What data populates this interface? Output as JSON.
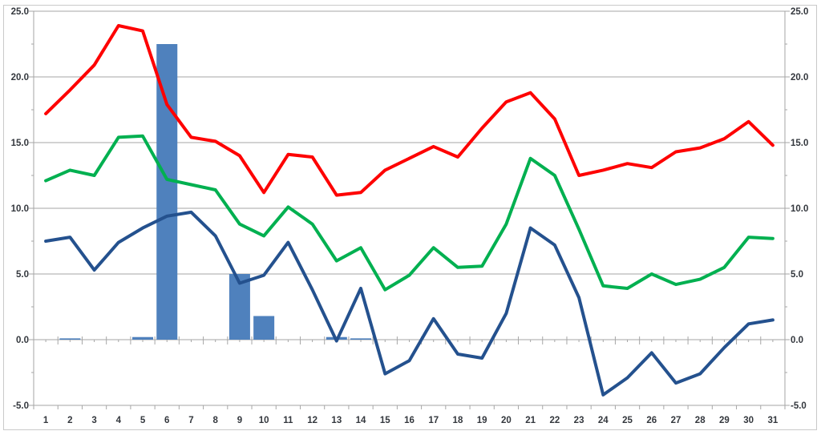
{
  "chart_data": {
    "type": "combo",
    "title": "",
    "legend": "none",
    "grid": true,
    "categories": [
      1,
      2,
      3,
      4,
      5,
      6,
      7,
      8,
      9,
      10,
      11,
      12,
      13,
      14,
      15,
      16,
      17,
      18,
      19,
      20,
      21,
      22,
      23,
      24,
      25,
      26,
      27,
      28,
      29,
      30,
      31
    ],
    "x_axis": {
      "labels": [
        "1",
        "2",
        "3",
        "4",
        "5",
        "6",
        "7",
        "8",
        "9",
        "10",
        "11",
        "12",
        "13",
        "14",
        "15",
        "16",
        "17",
        "18",
        "19",
        "20",
        "21",
        "22",
        "23",
        "24",
        "25",
        "26",
        "27",
        "28",
        "29",
        "30",
        "31"
      ]
    },
    "y_axis": {
      "min": -5.0,
      "max": 25.0,
      "major_step": 5.0,
      "minor_step": 2.5,
      "tick_labels": [
        "25.0",
        "20.0",
        "15.0",
        "10.0",
        "5.0",
        "0.0",
        "-5.0"
      ],
      "shown_left": true,
      "shown_right": true
    },
    "series": [
      {
        "name": "bar-series",
        "type": "bar",
        "color": "#4F81BD",
        "values": [
          0,
          0.1,
          0,
          0,
          0.2,
          22.5,
          0,
          0,
          5.0,
          1.8,
          0,
          0,
          0.2,
          0.1,
          0,
          0,
          0,
          0,
          0,
          0,
          0,
          0,
          0,
          0,
          0,
          0,
          0,
          0,
          0,
          0,
          0
        ]
      },
      {
        "name": "red-line",
        "type": "line",
        "color": "#FE0000",
        "values": [
          17.2,
          19.0,
          20.9,
          23.9,
          23.5,
          17.9,
          15.4,
          15.1,
          14.0,
          11.2,
          14.1,
          13.9,
          11.0,
          11.2,
          12.9,
          13.8,
          14.7,
          13.9,
          16.1,
          18.1,
          18.8,
          16.8,
          12.5,
          12.9,
          13.4,
          13.1,
          14.3,
          14.6,
          15.3,
          16.6,
          14.8
        ]
      },
      {
        "name": "green-line",
        "type": "line",
        "color": "#00B050",
        "values": [
          12.1,
          12.9,
          12.5,
          15.4,
          15.5,
          12.2,
          11.8,
          11.4,
          8.8,
          7.9,
          10.1,
          8.8,
          6.0,
          7.0,
          3.8,
          4.9,
          7.0,
          5.5,
          5.6,
          8.8,
          13.8,
          12.5,
          8.4,
          4.1,
          3.9,
          5.0,
          4.2,
          4.6,
          5.5,
          7.8,
          7.7
        ]
      },
      {
        "name": "blue-line",
        "type": "line",
        "color": "#24518E",
        "values": [
          7.5,
          7.8,
          5.3,
          7.4,
          8.5,
          9.4,
          9.7,
          7.9,
          4.3,
          4.9,
          7.4,
          3.8,
          -0.1,
          3.9,
          -2.6,
          -1.6,
          1.6,
          -1.1,
          -1.4,
          2.0,
          8.5,
          7.2,
          3.2,
          -4.2,
          -2.9,
          -1.0,
          -3.3,
          -2.6,
          -0.6,
          1.2,
          1.5
        ]
      }
    ],
    "colors": {
      "background": "#FFFFFF",
      "frame_border": "#C9C9C9",
      "gridline": "#A6A6A6",
      "axis": "#A6A6A6",
      "tick": "#A6A6A6",
      "label_text": "#33373d"
    }
  }
}
